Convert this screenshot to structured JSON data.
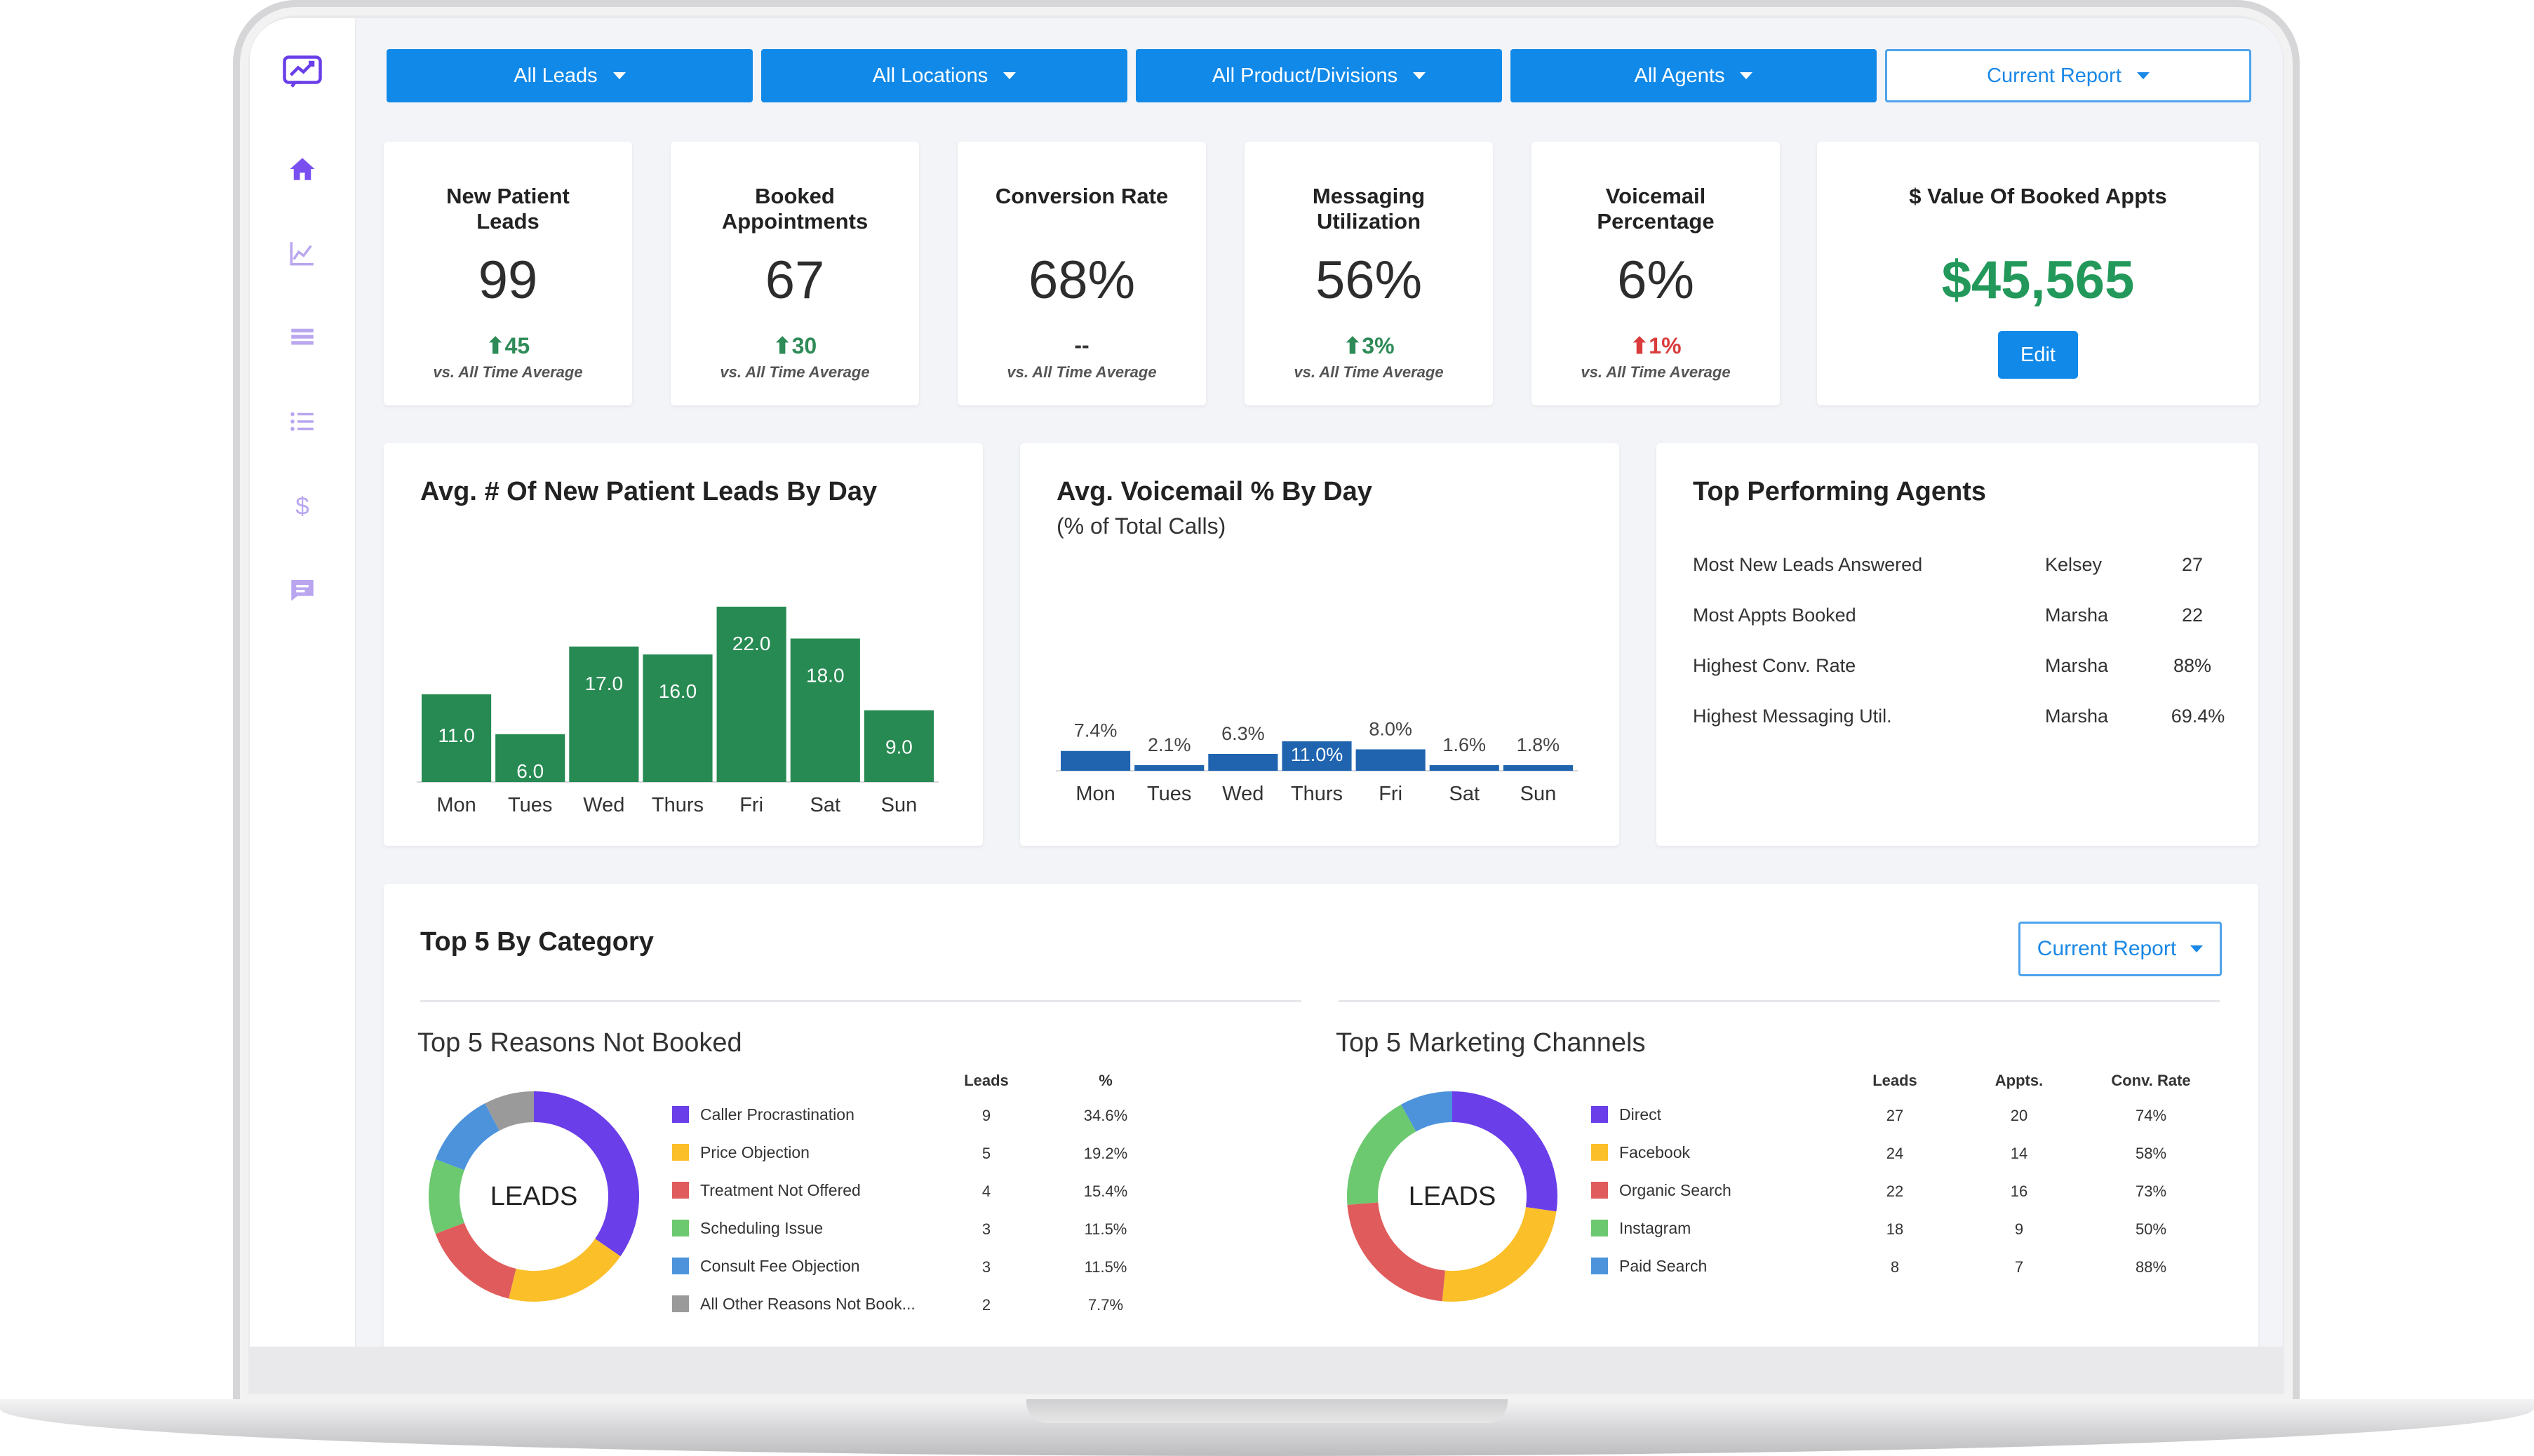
{
  "colors": {
    "accent": "#1189e8",
    "bar_green": "#268a52",
    "bar_blue": "#2064b0",
    "up": "#2e8b57",
    "down": "#d93b3b",
    "money": "#22995a"
  },
  "sidebar": {
    "items": [
      {
        "icon": "chat-trend-logo-icon"
      },
      {
        "icon": "home-icon"
      },
      {
        "icon": "chart-icon"
      },
      {
        "icon": "table-icon"
      },
      {
        "icon": "list-icon"
      },
      {
        "icon": "dollar-icon"
      },
      {
        "icon": "message-icon"
      }
    ]
  },
  "filters": [
    "All Leads",
    "All Locations",
    "All Product/Divisions",
    "All Agents",
    "Current Report"
  ],
  "kpis": [
    {
      "title": "New Patient Leads",
      "value": "99",
      "delta": "45",
      "direction": "up",
      "sub": "vs. All Time Average"
    },
    {
      "title": "Booked Appointments",
      "value": "67",
      "delta": "30",
      "direction": "up",
      "sub": "vs. All Time Average"
    },
    {
      "title": "Conversion Rate",
      "value": "68%",
      "delta": "--",
      "direction": "flat",
      "sub": "vs. All Time Average"
    },
    {
      "title": "Messaging Utilization",
      "value": "56%",
      "delta": "3%",
      "direction": "up",
      "sub": "vs. All Time Average"
    },
    {
      "title": "Voicemail Percentage",
      "value": "6%",
      "delta": "1%",
      "direction": "down",
      "sub": "vs. All Time Average"
    }
  ],
  "booked_value": {
    "title": "$ Value Of Booked Appts",
    "value": "$45,565",
    "button": "Edit"
  },
  "chart_data": [
    {
      "type": "bar",
      "title": "Avg. # Of New Patient Leads By Day",
      "categories": [
        "Mon",
        "Tues",
        "Wed",
        "Thurs",
        "Fri",
        "Sat",
        "Sun"
      ],
      "values": [
        11.0,
        6.0,
        17.0,
        16.0,
        22.0,
        18.0,
        9.0
      ],
      "labels": [
        "11.0",
        "6.0",
        "17.0",
        "16.0",
        "22.0",
        "18.0",
        "9.0"
      ],
      "ylim": [
        0,
        22
      ]
    },
    {
      "type": "bar",
      "title": "Avg. Voicemail % By Day",
      "subtitle": "(% of Total Calls)",
      "categories": [
        "Mon",
        "Tues",
        "Wed",
        "Thurs",
        "Fri",
        "Sat",
        "Sun"
      ],
      "values": [
        7.4,
        2.1,
        6.3,
        11.0,
        8.0,
        1.6,
        1.8
      ],
      "labels": [
        "7.4%",
        "2.1%",
        "6.3%",
        "11.0%",
        "8.0%",
        "1.6%",
        "1.8%"
      ],
      "ylim": [
        0,
        11
      ]
    }
  ],
  "agents": {
    "title": "Top Performing Agents",
    "rows": [
      {
        "metric": "Most New Leads Answered",
        "name": "Kelsey",
        "value": "27"
      },
      {
        "metric": "Most Appts Booked",
        "name": "Marsha",
        "value": "22"
      },
      {
        "metric": "Highest Conv. Rate",
        "name": "Marsha",
        "value": "88%"
      },
      {
        "metric": "Highest Messaging Util.",
        "name": "Marsha",
        "value": "69.4%"
      }
    ]
  },
  "category": {
    "title": "Top 5 By Category",
    "button": "Current Report",
    "reasons": {
      "title": "Top 5 Reasons Not Booked",
      "center": "LEADS",
      "headers": [
        "Leads",
        "%"
      ],
      "rows": [
        {
          "label": "Caller Procrastination",
          "color": "#6a3ee8",
          "leads": "9",
          "pct": "34.6%",
          "value": 9
        },
        {
          "label": "Price Objection",
          "color": "#fbbf2a",
          "leads": "5",
          "pct": "19.2%",
          "value": 5
        },
        {
          "label": "Treatment Not Offered",
          "color": "#e05c5c",
          "leads": "4",
          "pct": "15.4%",
          "value": 4
        },
        {
          "label": "Scheduling Issue",
          "color": "#6cc96f",
          "leads": "3",
          "pct": "11.5%",
          "value": 3
        },
        {
          "label": "Consult Fee Objection",
          "color": "#4c93dc",
          "leads": "3",
          "pct": "11.5%",
          "value": 3
        },
        {
          "label": "All Other Reasons Not Book...",
          "color": "#9a9a9a",
          "leads": "2",
          "pct": "7.7%",
          "value": 2
        }
      ]
    },
    "channels": {
      "title": "Top 5 Marketing Channels",
      "center": "LEADS",
      "headers": [
        "Leads",
        "Appts.",
        "Conv. Rate"
      ],
      "rows": [
        {
          "label": "Direct",
          "color": "#6a3ee8",
          "leads": "27",
          "appts": "20",
          "rate": "74%",
          "value": 27
        },
        {
          "label": "Facebook",
          "color": "#fbbf2a",
          "leads": "24",
          "appts": "14",
          "rate": "58%",
          "value": 24
        },
        {
          "label": "Organic Search",
          "color": "#e05c5c",
          "leads": "22",
          "appts": "16",
          "rate": "73%",
          "value": 22
        },
        {
          "label": "Instagram",
          "color": "#6cc96f",
          "leads": "18",
          "appts": "9",
          "rate": "50%",
          "value": 18
        },
        {
          "label": "Paid Search",
          "color": "#4c93dc",
          "leads": "8",
          "appts": "7",
          "rate": "88%",
          "value": 8
        }
      ]
    }
  }
}
